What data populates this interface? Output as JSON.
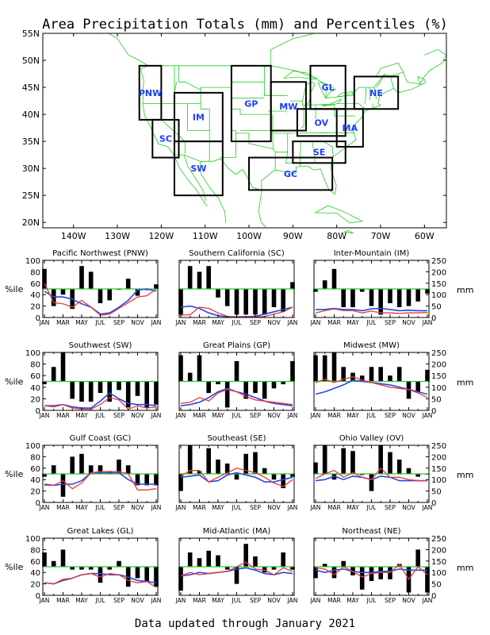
{
  "title": "Area Precipitation Totals (mm) and Percentiles (%)",
  "footer": "Data updated through January 2021",
  "colors": {
    "percentile_bar": "#000000",
    "total": "#e83a3a",
    "normal": "#2747e6",
    "median": "#2dcc2d",
    "map_lines": "#22cc22",
    "region_box": "#000000",
    "region_label": "#1a3cff"
  },
  "map": {
    "lat_labels": [
      "55N",
      "50N",
      "45N",
      "40N",
      "35N",
      "30N",
      "25N",
      "20N"
    ],
    "lon_labels": [
      "140W",
      "130W",
      "120W",
      "110W",
      "100W",
      "90W",
      "80W",
      "70W",
      "60W"
    ],
    "regions": [
      {
        "abbr": "PNW",
        "lon": [
          -125,
          -120
        ],
        "lat": [
          39,
          49
        ]
      },
      {
        "abbr": "SC",
        "lon": [
          -122,
          -116
        ],
        "lat": [
          32,
          39
        ]
      },
      {
        "abbr": "IM",
        "lon": [
          -117,
          -106
        ],
        "lat": [
          35,
          44
        ]
      },
      {
        "abbr": "SW",
        "lon": [
          -117,
          -106
        ],
        "lat": [
          25,
          35
        ]
      },
      {
        "abbr": "GP",
        "lon": [
          -104,
          -95
        ],
        "lat": [
          35,
          49
        ]
      },
      {
        "abbr": "MW",
        "lon": [
          -95,
          -87
        ],
        "lat": [
          37,
          46
        ]
      },
      {
        "abbr": "GL",
        "lon": [
          -86,
          -78
        ],
        "lat": [
          41,
          49
        ]
      },
      {
        "abbr": "OV",
        "lon": [
          -89,
          -78
        ],
        "lat": [
          36,
          41
        ]
      },
      {
        "abbr": "MA",
        "lon": [
          -80,
          -74
        ],
        "lat": [
          34,
          41
        ]
      },
      {
        "abbr": "NE",
        "lon": [
          -76,
          -66
        ],
        "lat": [
          41,
          47
        ]
      },
      {
        "abbr": "SE",
        "lon": [
          -90,
          -78
        ],
        "lat": [
          31,
          35
        ]
      },
      {
        "abbr": "GC",
        "lon": [
          -100,
          -81
        ],
        "lat": [
          26,
          32
        ]
      }
    ]
  },
  "month_labels": [
    "JAN",
    "MAR",
    "MAY",
    "JUL",
    "SEP",
    "NOV",
    "JAN"
  ],
  "percentile_axis": {
    "label": "%ile",
    "ticks": [
      "0",
      "20",
      "40",
      "60",
      "80",
      "100"
    ]
  },
  "mm_axis": {
    "label": "mm",
    "ticks": [
      "0",
      "50",
      "100",
      "150",
      "200",
      "250"
    ]
  },
  "chart_data": [
    {
      "type": "bar",
      "title": "Pacific Northwest (PNW)",
      "x": [
        "JAN",
        "FEB",
        "MAR",
        "APR",
        "MAY",
        "JUN",
        "JUL",
        "AUG",
        "SEP",
        "OCT",
        "NOV",
        "DEC",
        "JAN"
      ],
      "series": [
        {
          "name": "percentile",
          "values": [
            85,
            20,
            40,
            15,
            90,
            80,
            25,
            30,
            50,
            68,
            38,
            48,
            58
          ]
        },
        {
          "name": "total",
          "values": [
            150,
            65,
            60,
            45,
            75,
            45,
            10,
            15,
            40,
            65,
            90,
            95,
            125
          ]
        },
        {
          "name": "normal",
          "values": [
            115,
            90,
            90,
            80,
            60,
            45,
            15,
            20,
            45,
            75,
            120,
            125,
            115
          ]
        }
      ]
    },
    {
      "type": "bar",
      "title": "Southern California (SC)",
      "x": [
        "JAN",
        "FEB",
        "MAR",
        "APR",
        "MAY",
        "JUN",
        "JUL",
        "AUG",
        "SEP",
        "OCT",
        "NOV",
        "DEC",
        "JAN"
      ],
      "series": [
        {
          "name": "percentile",
          "values": [
            5,
            90,
            80,
            90,
            35,
            20,
            5,
            5,
            5,
            5,
            18,
            10,
            62
          ]
        },
        {
          "name": "total",
          "values": [
            10,
            12,
            45,
            40,
            20,
            5,
            2,
            2,
            2,
            5,
            15,
            25,
            45
          ]
        },
        {
          "name": "normal",
          "values": [
            45,
            50,
            40,
            20,
            8,
            3,
            3,
            3,
            5,
            15,
            25,
            35,
            45
          ]
        }
      ]
    },
    {
      "type": "bar",
      "title": "Inter-Mountain (IM)",
      "x": [
        "JAN",
        "FEB",
        "MAR",
        "APR",
        "MAY",
        "JUN",
        "JUL",
        "AUG",
        "SEP",
        "OCT",
        "NOV",
        "DEC",
        "JAN"
      ],
      "series": [
        {
          "name": "percentile",
          "values": [
            45,
            65,
            85,
            18,
            18,
            45,
            20,
            5,
            25,
            18,
            20,
            28,
            42
          ]
        },
        {
          "name": "total",
          "values": [
            20,
            30,
            38,
            30,
            30,
            20,
            28,
            20,
            20,
            18,
            20,
            20,
            22
          ]
        },
        {
          "name": "normal",
          "values": [
            35,
            35,
            40,
            35,
            35,
            30,
            38,
            40,
            35,
            30,
            32,
            30,
            30
          ]
        }
      ]
    },
    {
      "type": "bar",
      "title": "Southwest (SW)",
      "x": [
        "JAN",
        "FEB",
        "MAR",
        "APR",
        "MAY",
        "JUN",
        "JUL",
        "AUG",
        "SEP",
        "OCT",
        "NOV",
        "DEC",
        "JAN"
      ],
      "series": [
        {
          "name": "percentile",
          "values": [
            45,
            75,
            100,
            20,
            15,
            15,
            30,
            15,
            35,
            5,
            25,
            5,
            10
          ]
        },
        {
          "name": "total",
          "values": [
            20,
            15,
            25,
            10,
            5,
            5,
            25,
            55,
            45,
            5,
            20,
            10,
            15
          ]
        },
        {
          "name": "normal",
          "values": [
            20,
            20,
            25,
            15,
            10,
            10,
            40,
            75,
            50,
            30,
            25,
            25,
            20
          ]
        }
      ]
    },
    {
      "type": "bar",
      "title": "Great Plains (GP)",
      "x": [
        "JAN",
        "FEB",
        "MAR",
        "APR",
        "MAY",
        "JUN",
        "JUL",
        "AUG",
        "SEP",
        "OCT",
        "NOV",
        "DEC",
        "JAN"
      ],
      "series": [
        {
          "name": "percentile",
          "values": [
            95,
            65,
            95,
            30,
            45,
            5,
            85,
            20,
            30,
            20,
            38,
            45,
            85
          ]
        },
        {
          "name": "total",
          "values": [
            30,
            35,
            55,
            40,
            75,
            90,
            80,
            60,
            45,
            40,
            35,
            30,
            25
          ]
        },
        {
          "name": "normal",
          "values": [
            20,
            25,
            35,
            55,
            80,
            95,
            80,
            70,
            55,
            40,
            30,
            25,
            20
          ]
        }
      ]
    },
    {
      "type": "bar",
      "title": "Midwest (MW)",
      "x": [
        "JAN",
        "FEB",
        "MAR",
        "APR",
        "MAY",
        "JUN",
        "JUL",
        "AUG",
        "SEP",
        "OCT",
        "NOV",
        "DEC",
        "JAN"
      ],
      "series": [
        {
          "name": "percentile",
          "values": [
            95,
            95,
            100,
            75,
            65,
            60,
            75,
            75,
            60,
            75,
            20,
            32,
            70
          ]
        },
        {
          "name": "total",
          "values": [
            120,
            135,
            120,
            135,
            145,
            130,
            120,
            110,
            100,
            95,
            90,
            75,
            55
          ]
        },
        {
          "name": "normal",
          "values": [
            70,
            80,
            95,
            110,
            130,
            125,
            120,
            115,
            110,
            100,
            90,
            80,
            70
          ]
        }
      ]
    },
    {
      "type": "bar",
      "title": "Gulf Coast (GC)",
      "x": [
        "JAN",
        "FEB",
        "MAR",
        "APR",
        "MAY",
        "JUN",
        "JUL",
        "AUG",
        "SEP",
        "OCT",
        "NOV",
        "DEC",
        "JAN"
      ],
      "series": [
        {
          "name": "percentile",
          "values": [
            45,
            65,
            10,
            80,
            85,
            65,
            65,
            55,
            75,
            65,
            30,
            30,
            30
          ]
        },
        {
          "name": "total",
          "values": [
            75,
            75,
            95,
            60,
            85,
            130,
            135,
            135,
            135,
            125,
            55,
            55,
            60
          ]
        },
        {
          "name": "normal",
          "values": [
            80,
            75,
            80,
            80,
            95,
            130,
            130,
            130,
            130,
            100,
            80,
            80,
            80
          ]
        }
      ]
    },
    {
      "type": "bar",
      "title": "Southeast (SE)",
      "x": [
        "JAN",
        "FEB",
        "MAR",
        "APR",
        "MAY",
        "JUN",
        "JUL",
        "AUG",
        "SEP",
        "OCT",
        "NOV",
        "DEC",
        "JAN"
      ],
      "series": [
        {
          "name": "percentile",
          "values": [
            20,
            100,
            55,
            95,
            75,
            68,
            40,
            85,
            88,
            60,
            40,
            25,
            45
          ]
        },
        {
          "name": "total",
          "values": [
            115,
            140,
            140,
            90,
            110,
            130,
            150,
            140,
            130,
            110,
            85,
            70,
            100
          ]
        },
        {
          "name": "normal",
          "values": [
            110,
            115,
            120,
            90,
            95,
            120,
            130,
            120,
            110,
            90,
            90,
            100,
            110
          ]
        }
      ]
    },
    {
      "type": "bar",
      "title": "Ohio Valley (OV)",
      "x": [
        "JAN",
        "FEB",
        "MAR",
        "APR",
        "MAY",
        "JUN",
        "JUL",
        "AUG",
        "SEP",
        "OCT",
        "NOV",
        "DEC",
        "JAN"
      ],
      "series": [
        {
          "name": "percentile",
          "values": [
            70,
            100,
            40,
            95,
            90,
            48,
            20,
            100,
            88,
            75,
            60,
            45,
            50
          ]
        },
        {
          "name": "total",
          "values": [
            105,
            125,
            140,
            110,
            130,
            110,
            100,
            150,
            110,
            110,
            100,
            95,
            95
          ]
        },
        {
          "name": "normal",
          "values": [
            95,
            100,
            115,
            100,
            115,
            110,
            100,
            115,
            110,
            95,
            95,
            95,
            95
          ]
        }
      ]
    },
    {
      "type": "bar",
      "title": "Great Lakes (GL)",
      "x": [
        "JAN",
        "FEB",
        "MAR",
        "APR",
        "MAY",
        "JUN",
        "JUL",
        "AUG",
        "SEP",
        "OCT",
        "NOV",
        "DEC",
        "JAN"
      ],
      "series": [
        {
          "name": "percentile",
          "values": [
            75,
            60,
            80,
            45,
            45,
            45,
            22,
            45,
            60,
            15,
            30,
            25,
            15
          ]
        },
        {
          "name": "total",
          "values": [
            55,
            50,
            70,
            75,
            90,
            95,
            80,
            95,
            90,
            65,
            55,
            60,
            35
          ]
        },
        {
          "name": "normal",
          "values": [
            55,
            50,
            65,
            75,
            90,
            95,
            95,
            90,
            90,
            80,
            65,
            60,
            55
          ]
        }
      ]
    },
    {
      "type": "bar",
      "title": "Mid-Atlantic (MA)",
      "x": [
        "JAN",
        "FEB",
        "MAR",
        "APR",
        "MAY",
        "JUN",
        "JUL",
        "AUG",
        "SEP",
        "OCT",
        "NOV",
        "DEC",
        "JAN"
      ],
      "series": [
        {
          "name": "percentile",
          "values": [
            8,
            75,
            65,
            78,
            70,
            45,
            20,
            90,
            68,
            40,
            45,
            75,
            45
          ]
        },
        {
          "name": "total",
          "values": [
            85,
            100,
            90,
            95,
            100,
            105,
            125,
            145,
            115,
            110,
            90,
            120,
            105
          ]
        },
        {
          "name": "normal",
          "values": [
            85,
            90,
            100,
            95,
            100,
            105,
            115,
            120,
            110,
            95,
            90,
            100,
            95
          ]
        }
      ]
    },
    {
      "type": "bar",
      "title": "Northeast (NE)",
      "x": [
        "JAN",
        "FEB",
        "MAR",
        "APR",
        "MAY",
        "JUN",
        "JUL",
        "AUG",
        "SEP",
        "OCT",
        "NOV",
        "DEC",
        "JAN"
      ],
      "series": [
        {
          "name": "percentile",
          "values": [
            30,
            55,
            30,
            60,
            35,
            10,
            25,
            28,
            28,
            55,
            5,
            80,
            5
          ]
        },
        {
          "name": "total",
          "values": [
            120,
            115,
            90,
            125,
            105,
            80,
            95,
            100,
            100,
            135,
            70,
            125,
            90
          ]
        },
        {
          "name": "normal",
          "values": [
            110,
            100,
            110,
            115,
            105,
            100,
            100,
            105,
            105,
            115,
            110,
            110,
            110
          ]
        }
      ]
    }
  ]
}
